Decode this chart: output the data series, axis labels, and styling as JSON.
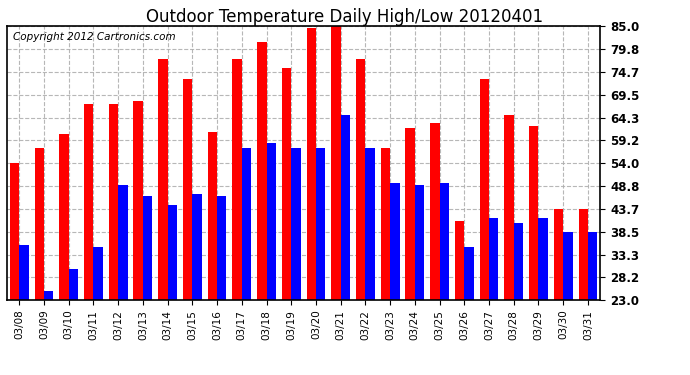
{
  "title": "Outdoor Temperature Daily High/Low 20120401",
  "copyright": "Copyright 2012 Cartronics.com",
  "dates": [
    "03/08",
    "03/09",
    "03/10",
    "03/11",
    "03/12",
    "03/13",
    "03/14",
    "03/15",
    "03/16",
    "03/17",
    "03/18",
    "03/19",
    "03/20",
    "03/21",
    "03/22",
    "03/23",
    "03/24",
    "03/25",
    "03/26",
    "03/27",
    "03/28",
    "03/29",
    "03/30",
    "03/31"
  ],
  "highs": [
    54.0,
    57.5,
    60.5,
    67.5,
    67.5,
    68.0,
    77.5,
    73.0,
    61.0,
    77.5,
    81.5,
    75.5,
    84.5,
    85.0,
    77.5,
    57.5,
    62.0,
    63.0,
    41.0,
    73.0,
    65.0,
    62.5,
    43.5,
    43.5
  ],
  "lows": [
    35.5,
    25.0,
    30.0,
    35.0,
    49.0,
    46.5,
    44.5,
    47.0,
    46.5,
    57.5,
    58.5,
    57.5,
    57.5,
    65.0,
    57.5,
    49.5,
    49.0,
    49.5,
    35.0,
    41.5,
    40.5,
    41.5,
    38.5,
    38.5
  ],
  "ymin": 23.0,
  "ymax": 85.0,
  "yticks": [
    23.0,
    28.2,
    33.3,
    38.5,
    43.7,
    48.8,
    54.0,
    59.2,
    64.3,
    69.5,
    74.7,
    79.8,
    85.0
  ],
  "bar_width": 0.38,
  "high_color": "#ff0000",
  "low_color": "#0000ff",
  "bg_color": "#ffffff",
  "grid_color": "#b0b0b0",
  "title_fontsize": 12,
  "copyright_fontsize": 7.5
}
